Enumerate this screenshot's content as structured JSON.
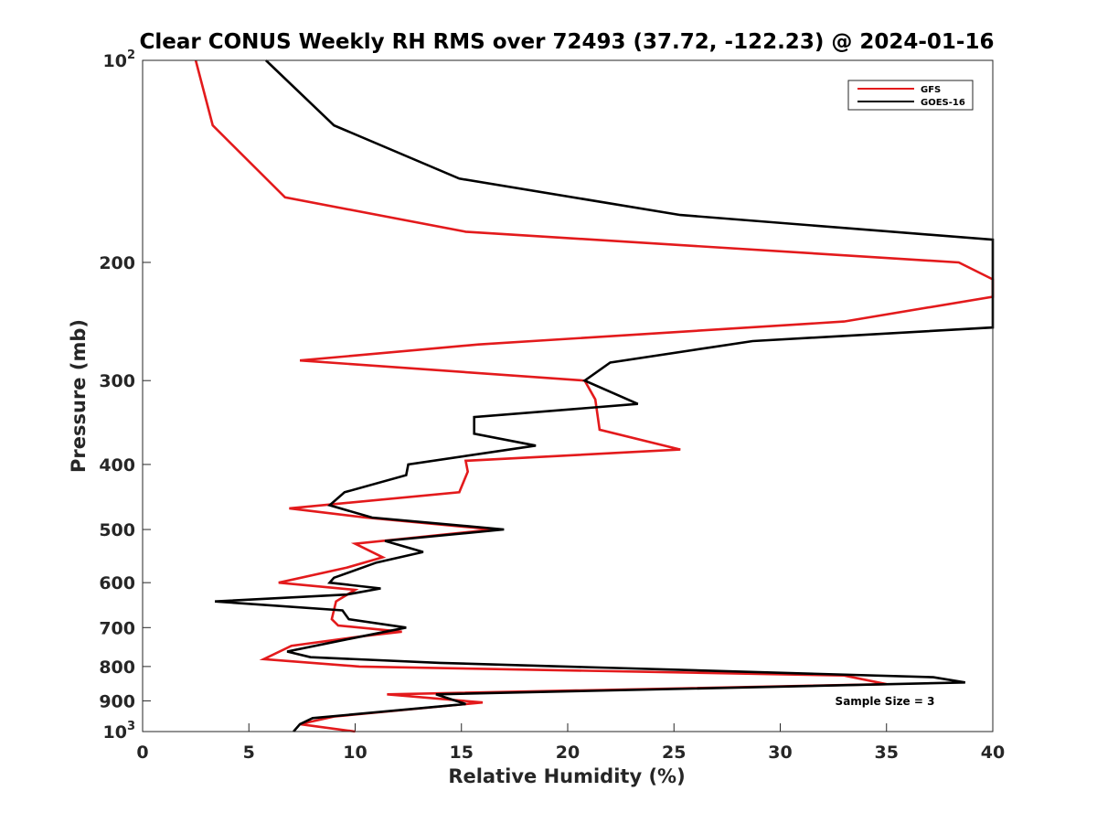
{
  "chart_data": {
    "type": "line",
    "title": "Clear CONUS Weekly RH RMS over 72493 (37.72, -122.23) @ 2024-01-16",
    "xlabel": "Relative Humidity (%)",
    "ylabel": "Pressure (mb)",
    "xlim": [
      0,
      40
    ],
    "ylim": [
      100,
      1000
    ],
    "yscale": "log",
    "y_reversed": true,
    "grid": false,
    "legend_position": "top-right",
    "x_ticks": [
      "0",
      "5",
      "10",
      "15",
      "20",
      "25",
      "30",
      "35",
      "40"
    ],
    "y_ticks": [
      {
        "value": 100,
        "base": "10",
        "exp": "2"
      },
      {
        "value": 200,
        "label": "200"
      },
      {
        "value": 300,
        "label": "300"
      },
      {
        "value": 400,
        "label": "400"
      },
      {
        "value": 500,
        "label": "500"
      },
      {
        "value": 600,
        "label": "600"
      },
      {
        "value": 700,
        "label": "700"
      },
      {
        "value": 800,
        "label": "800"
      },
      {
        "value": 900,
        "label": "900"
      },
      {
        "value": 1000,
        "base": "10",
        "exp": "3"
      }
    ],
    "annotation": "Sample Size = 3",
    "series": [
      {
        "name": "GFS",
        "color": "#e31a1c",
        "points": [
          [
            2.5,
            100
          ],
          [
            3.3,
            125
          ],
          [
            6.7,
            160
          ],
          [
            15.2,
            180
          ],
          [
            38.4,
            200
          ],
          [
            40.0,
            212
          ],
          [
            40.0,
            225
          ],
          [
            33.0,
            245
          ],
          [
            15.8,
            265
          ],
          [
            7.4,
            280
          ],
          [
            20.8,
            300
          ],
          [
            21.3,
            320
          ],
          [
            21.5,
            355
          ],
          [
            25.3,
            380
          ],
          [
            15.2,
            395
          ],
          [
            15.3,
            410
          ],
          [
            14.9,
            440
          ],
          [
            6.9,
            465
          ],
          [
            10.5,
            480
          ],
          [
            16.5,
            500
          ],
          [
            10.0,
            525
          ],
          [
            11.3,
            550
          ],
          [
            9.6,
            570
          ],
          [
            6.4,
            600
          ],
          [
            10.0,
            615
          ],
          [
            9.1,
            640
          ],
          [
            8.9,
            680
          ],
          [
            9.2,
            695
          ],
          [
            12.2,
            710
          ],
          [
            10.5,
            720
          ],
          [
            7.0,
            745
          ],
          [
            5.7,
            780
          ],
          [
            10.2,
            800
          ],
          [
            33.0,
            825
          ],
          [
            35.0,
            850
          ],
          [
            11.5,
            880
          ],
          [
            16.0,
            905
          ],
          [
            9.0,
            950
          ],
          [
            7.4,
            975
          ],
          [
            10.0,
            1000
          ]
        ]
      },
      {
        "name": "GOES-16",
        "color": "#000000",
        "points": [
          [
            5.8,
            100
          ],
          [
            9.0,
            125
          ],
          [
            14.9,
            150
          ],
          [
            25.3,
            170
          ],
          [
            40.0,
            185
          ],
          [
            40.0,
            250
          ],
          [
            28.7,
            262
          ],
          [
            22.0,
            282
          ],
          [
            20.8,
            300
          ],
          [
            23.3,
            325
          ],
          [
            15.6,
            340
          ],
          [
            15.6,
            360
          ],
          [
            18.5,
            375
          ],
          [
            12.5,
            400
          ],
          [
            12.4,
            415
          ],
          [
            9.5,
            440
          ],
          [
            8.8,
            460
          ],
          [
            10.8,
            480
          ],
          [
            17.0,
            500
          ],
          [
            11.4,
            520
          ],
          [
            13.2,
            540
          ],
          [
            11.0,
            560
          ],
          [
            9.0,
            590
          ],
          [
            8.8,
            600
          ],
          [
            11.2,
            612
          ],
          [
            9.6,
            625
          ],
          [
            3.4,
            640
          ],
          [
            9.4,
            660
          ],
          [
            9.7,
            680
          ],
          [
            12.4,
            700
          ],
          [
            9.5,
            730
          ],
          [
            6.8,
            760
          ],
          [
            7.9,
            775
          ],
          [
            14.0,
            790
          ],
          [
            37.2,
            830
          ],
          [
            38.7,
            845
          ],
          [
            13.8,
            880
          ],
          [
            15.2,
            910
          ],
          [
            8.0,
            955
          ],
          [
            7.4,
            975
          ],
          [
            7.1,
            1000
          ]
        ]
      }
    ]
  }
}
